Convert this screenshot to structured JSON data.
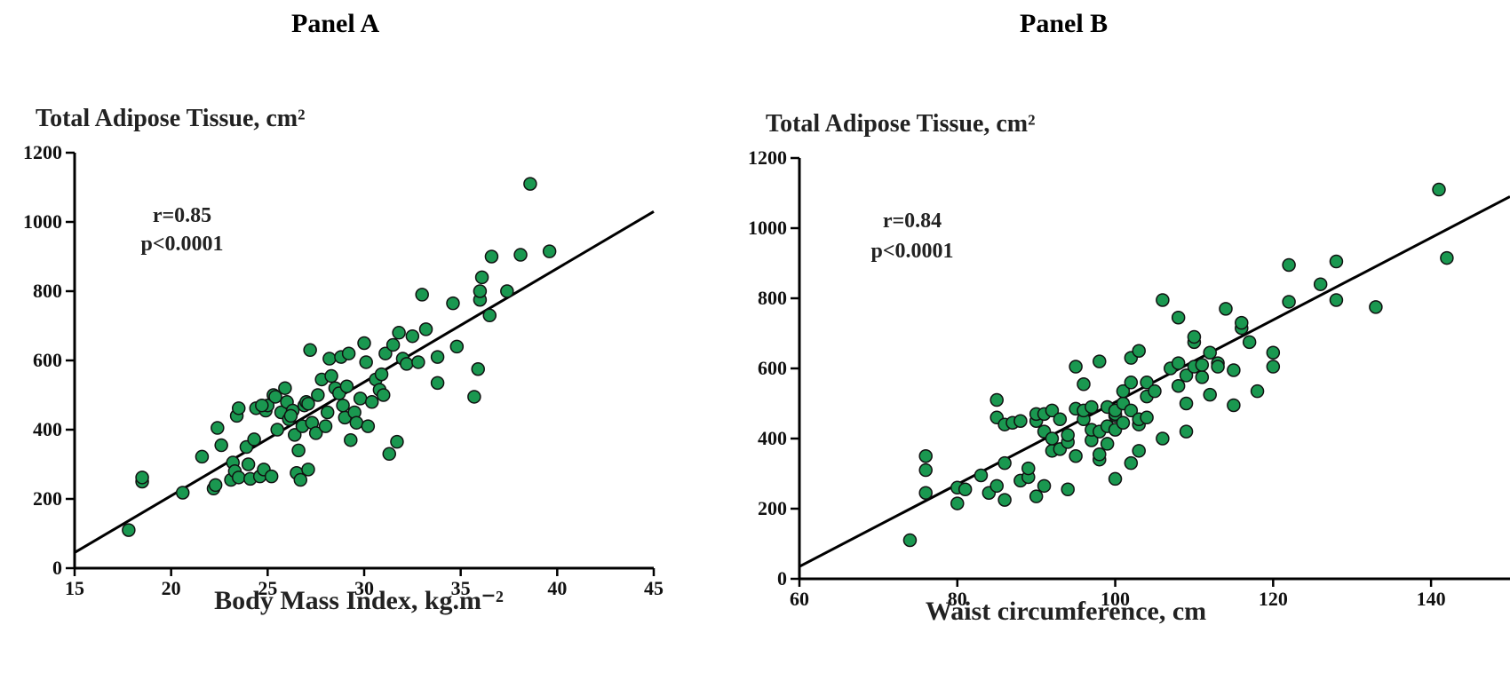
{
  "panels": [
    {
      "title": "Panel A"
    },
    {
      "title": "Panel B"
    }
  ],
  "chart_data": [
    {
      "type": "scatter",
      "title": "Panel A",
      "ylabel": "Total Adipose Tissue, cm²",
      "xlabel": "Body Mass Index, kg.m⁻²",
      "xlim": [
        15,
        45
      ],
      "ylim": [
        0,
        1200
      ],
      "xticks": [
        15,
        20,
        25,
        30,
        35,
        40,
        45
      ],
      "yticks": [
        0,
        200,
        400,
        600,
        800,
        1000,
        1200
      ],
      "annotations": [
        "r=0.85",
        "p<0.0001"
      ],
      "marker_color": "#1a9850",
      "fit_line": {
        "x": [
          15,
          45
        ],
        "y": [
          45,
          1030
        ]
      },
      "x": [
        17.8,
        18.5,
        18.5,
        20.6,
        21.6,
        22.2,
        22.3,
        22.4,
        22.6,
        23.1,
        23.2,
        23.3,
        23.4,
        23.5,
        23.5,
        23.9,
        24.0,
        24.1,
        24.3,
        24.4,
        24.6,
        24.8,
        24.9,
        25.0,
        25.2,
        25.3,
        25.4,
        25.5,
        25.7,
        26.0,
        26.1,
        26.3,
        26.4,
        26.5,
        26.6,
        26.7,
        26.8,
        26.9,
        27.0,
        27.1,
        27.2,
        27.3,
        27.5,
        27.6,
        27.8,
        28.0,
        28.1,
        28.2,
        28.3,
        28.5,
        28.7,
        28.8,
        29.0,
        29.1,
        29.2,
        29.3,
        29.5,
        29.6,
        29.8,
        30.0,
        30.1,
        30.2,
        30.4,
        30.6,
        30.8,
        31.0,
        31.1,
        31.3,
        31.5,
        31.7,
        31.8,
        32.0,
        32.2,
        32.5,
        32.8,
        33.0,
        33.2,
        33.8,
        33.8,
        34.6,
        34.8,
        35.7,
        35.9,
        36.0,
        36.0,
        36.1,
        36.5,
        36.6,
        37.4,
        38.1,
        38.6,
        39.6,
        26.2,
        27.1,
        28.9,
        30.9,
        24.7,
        25.9
      ],
      "y": [
        110,
        250,
        262,
        218,
        322,
        230,
        240,
        405,
        355,
        255,
        305,
        280,
        440,
        462,
        262,
        350,
        300,
        258,
        372,
        462,
        265,
        285,
        455,
        470,
        265,
        500,
        495,
        400,
        450,
        480,
        430,
        455,
        385,
        275,
        340,
        255,
        410,
        470,
        480,
        475,
        630,
        420,
        390,
        500,
        545,
        410,
        450,
        605,
        555,
        520,
        505,
        610,
        435,
        525,
        620,
        370,
        450,
        420,
        490,
        650,
        595,
        410,
        480,
        545,
        515,
        500,
        620,
        330,
        645,
        365,
        680,
        605,
        590,
        670,
        595,
        790,
        690,
        535,
        610,
        765,
        640,
        495,
        575,
        775,
        800,
        840,
        730,
        900,
        800,
        905,
        1110,
        915,
        440,
        285,
        470,
        560,
        470,
        520
      ]
    },
    {
      "type": "scatter",
      "title": "Panel B",
      "ylabel": "Total Adipose Tissue, cm²",
      "xlabel": "Waist circumference, cm",
      "xlim": [
        60,
        150
      ],
      "ylim": [
        0,
        1200
      ],
      "xticks": [
        60,
        80,
        100,
        120,
        140
      ],
      "yticks": [
        0,
        200,
        400,
        600,
        800,
        1000,
        1200
      ],
      "annotations": [
        "r=0.84",
        "p<0.0001"
      ],
      "marker_color": "#1a9850",
      "fit_line": {
        "x": [
          60,
          150
        ],
        "y": [
          35,
          1090
        ]
      },
      "x": [
        74,
        76,
        76,
        76,
        80,
        80,
        81,
        83,
        84,
        85,
        85,
        85,
        86,
        86,
        86,
        87,
        88,
        88,
        89,
        89,
        90,
        90,
        90,
        91,
        91,
        91,
        92,
        92,
        92,
        93,
        93,
        94,
        94,
        94,
        95,
        95,
        95,
        96,
        96,
        96,
        97,
        97,
        97,
        98,
        98,
        98,
        98,
        99,
        99,
        99,
        100,
        100,
        100,
        100,
        100,
        101,
        101,
        101,
        102,
        102,
        102,
        102,
        103,
        103,
        103,
        103,
        104,
        104,
        104,
        105,
        106,
        106,
        107,
        108,
        108,
        108,
        109,
        109,
        109,
        110,
        110,
        110,
        111,
        111,
        112,
        112,
        113,
        113,
        114,
        115,
        115,
        116,
        116,
        117,
        118,
        120,
        120,
        122,
        122,
        126,
        128,
        128,
        133,
        141,
        142
      ],
      "y": [
        110,
        245,
        310,
        350,
        215,
        260,
        255,
        295,
        245,
        265,
        460,
        510,
        225,
        330,
        440,
        445,
        280,
        450,
        290,
        315,
        235,
        450,
        470,
        265,
        420,
        470,
        365,
        400,
        480,
        370,
        455,
        255,
        390,
        410,
        350,
        485,
        605,
        455,
        480,
        555,
        395,
        425,
        490,
        340,
        355,
        420,
        620,
        385,
        435,
        490,
        285,
        425,
        465,
        470,
        480,
        445,
        500,
        535,
        330,
        480,
        560,
        630,
        365,
        440,
        455,
        650,
        460,
        520,
        560,
        535,
        400,
        795,
        600,
        550,
        615,
        745,
        420,
        500,
        580,
        605,
        675,
        690,
        575,
        610,
        525,
        645,
        615,
        605,
        770,
        495,
        595,
        715,
        730,
        675,
        535,
        605,
        645,
        790,
        895,
        840,
        795,
        905,
        775,
        1110,
        915
      ]
    }
  ]
}
